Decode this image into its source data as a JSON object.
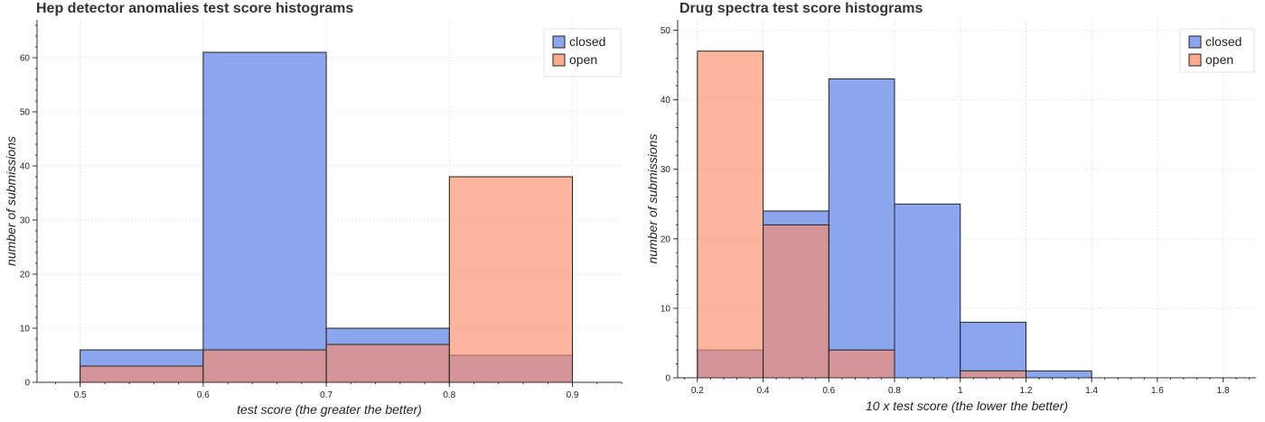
{
  "chart_data": [
    {
      "type": "bar",
      "title": "Hep detector anomalies test score histograms",
      "xlabel": "test score (the greater the better)",
      "ylabel": "number of submissions",
      "xlim": [
        0.465,
        0.94
      ],
      "ylim": [
        0,
        67
      ],
      "x_ticks": [
        0.5,
        0.6,
        0.7,
        0.8,
        0.9
      ],
      "x_tick_labels": [
        "0.5",
        "0.6",
        "0.7",
        "0.8",
        "0.9"
      ],
      "y_ticks": [
        0,
        10,
        20,
        30,
        40,
        50,
        60
      ],
      "y_tick_labels": [
        "0",
        "10",
        "20",
        "30",
        "40",
        "50",
        "60"
      ],
      "grid": true,
      "legend_position": "top-right",
      "bin_edges": [
        0.5,
        0.6,
        0.7,
        0.8,
        0.9
      ],
      "series": [
        {
          "name": "closed",
          "color": "#6487e8",
          "values": [
            6,
            61,
            10,
            5
          ]
        },
        {
          "name": "open",
          "color": "#fa8c69",
          "values": [
            3,
            6,
            7,
            38
          ]
        }
      ]
    },
    {
      "type": "bar",
      "title": "Drug spectra test score histograms",
      "xlabel": "10 x test score (the lower the better)",
      "ylabel": "number of submissions",
      "xlim": [
        0.14,
        1.9
      ],
      "ylim": [
        0,
        51.5
      ],
      "x_ticks": [
        0.2,
        0.4,
        0.6,
        0.8,
        1.0,
        1.2,
        1.4,
        1.6,
        1.8
      ],
      "x_tick_labels": [
        "0.2",
        "0.4",
        "0.6",
        "0.8",
        "1",
        "1.2",
        "1.4",
        "1.6",
        "1.8"
      ],
      "y_ticks": [
        0,
        10,
        20,
        30,
        40,
        50
      ],
      "y_tick_labels": [
        "0",
        "10",
        "20",
        "30",
        "40",
        "50"
      ],
      "grid": true,
      "legend_position": "top-right",
      "bin_edges": [
        0.2,
        0.4,
        0.6,
        0.8,
        1.0,
        1.2,
        1.4
      ],
      "series": [
        {
          "name": "closed",
          "color": "#6487e8",
          "values": [
            4,
            24,
            43,
            25,
            8,
            1
          ]
        },
        {
          "name": "open",
          "color": "#fa8c69",
          "values": [
            47,
            22,
            4,
            0,
            1,
            0
          ]
        }
      ]
    }
  ]
}
